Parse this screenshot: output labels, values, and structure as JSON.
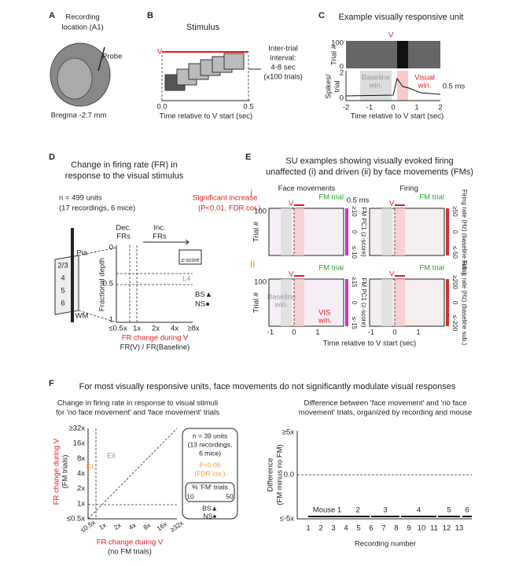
{
  "A": {
    "label": "A",
    "title": [
      "Recording",
      "location (A1)"
    ],
    "probe": "Probe",
    "bregma": "Bregma -2.7 mm"
  },
  "B": {
    "label": "B",
    "title": "Stimulus",
    "v": "V",
    "interval": [
      "Inter-trial",
      "interval:",
      "4-8 sec",
      "(x100 trials)"
    ],
    "xticks": [
      "0.0",
      "0.5"
    ],
    "xlabel": "Time relative to V start (sec)"
  },
  "C": {
    "label": "C",
    "title": "Example visually responsive unit",
    "v": "V",
    "ylabel_top": "Trial #",
    "yticks_top": [
      "100",
      "0"
    ],
    "ylabel_bottom": [
      "Spikes/",
      "trial"
    ],
    "yticks_bottom": [
      "2",
      "0"
    ],
    "baseline": [
      "Baseline",
      "win."
    ],
    "visual": [
      "Visual",
      "win."
    ],
    "scale": "0.5 ms",
    "xticks": [
      "-2",
      "-1",
      "0",
      "1",
      "2"
    ],
    "xlabel": "Time relative to V start (sec)"
  },
  "D": {
    "label": "D",
    "title": [
      "Change in firing rate (FR) in",
      "response to the visual stimulus"
    ],
    "n": [
      "n = 499 units",
      "(17 recordings, 6 mice)"
    ],
    "sig": [
      "Significant increase",
      "(P<0.01, FDR cor.)"
    ],
    "dec": [
      "Dec.",
      "FRs"
    ],
    "inc": [
      "Inc.",
      "FRs"
    ],
    "layers": [
      "Pia",
      "2/3",
      "4",
      "5",
      "6",
      "WM"
    ],
    "ylabel": "Fractional depth",
    "yticks": [
      "0",
      "0.5",
      "1"
    ],
    "l4": "L4",
    "zscore": "z-score",
    "bs": "BS▲",
    "ns": "NS●",
    "xticks": [
      "≤0.5x",
      "1x",
      "2x",
      "4x",
      "≥8x"
    ],
    "xlabel": [
      "FR change during V",
      "FR(V) / FR(Baseline)"
    ]
  },
  "E": {
    "label": "E",
    "title": [
      "SU examples showing visually evoked firing",
      "unaffected (i) and driven (ii) by face movements (FMs)"
    ],
    "rows": [
      "i",
      "ii"
    ],
    "col_titles": [
      "Face movements",
      "Firing"
    ],
    "fm_trial": "FM trial",
    "ylabel": "Trial #",
    "ytick": "100",
    "scale": "0.5 ms",
    "v": "V",
    "cbar_fm": "FM PC1 (z-score)",
    "cbar_fr": "Firing rate (Hz) (baseline sub.)",
    "cbar_ticks": [
      [
        "≥10",
        "0",
        "≤-10"
      ],
      [
        "≥50",
        "0",
        "≤-50"
      ],
      [
        "≥15",
        "0",
        "≤-15"
      ],
      [
        "≥200",
        "0",
        "≤-200"
      ]
    ],
    "baseline": [
      "Baseline",
      "win."
    ],
    "vis": [
      "VIS",
      "win."
    ],
    "xticks": [
      "-1",
      "0",
      "1"
    ],
    "xlabel": "Time relative to V start (sec)"
  },
  "F": {
    "label": "F",
    "headline": "For most visually responsive units, face movements do not significantly modulate visual responses",
    "left": {
      "title": [
        "Change in firing rate in response to visual stimuli",
        "for 'no face movement' and 'face movement' trials"
      ],
      "ylabel": [
        "FR change during V",
        "(FM trials)"
      ],
      "xlabel": [
        "FR change during V",
        "(no FM trials)"
      ],
      "ticks": [
        "≤0.5x",
        "1x",
        "2x",
        "4x",
        "8x",
        "16x",
        "≥32x"
      ],
      "ei": "Ei",
      "eii": "Eii",
      "legend": [
        "n = 39 units",
        "(13 recordings,",
        "6 mice)",
        "P<0.05",
        "(FDR cor.)",
        "% 'FM' trials",
        "10",
        "50",
        "BS▲",
        "NS●"
      ]
    },
    "right": {
      "title": [
        "Difference between 'face movement' and 'no face",
        "movement' trials, organized by recording and mouse"
      ],
      "ylabel": [
        "Difference",
        "(FM minus no FM)"
      ],
      "yticks": [
        "≥5x",
        "0.0",
        "≤-5x"
      ],
      "mice": [
        "Mouse 1",
        "2",
        "3",
        "4",
        "5",
        "6"
      ],
      "xticks": [
        "1",
        "2",
        "3",
        "4",
        "5",
        "6",
        "7",
        "8",
        "9",
        "10",
        "11",
        "12",
        "13"
      ],
      "xlabel": "Recording number"
    }
  }
}
